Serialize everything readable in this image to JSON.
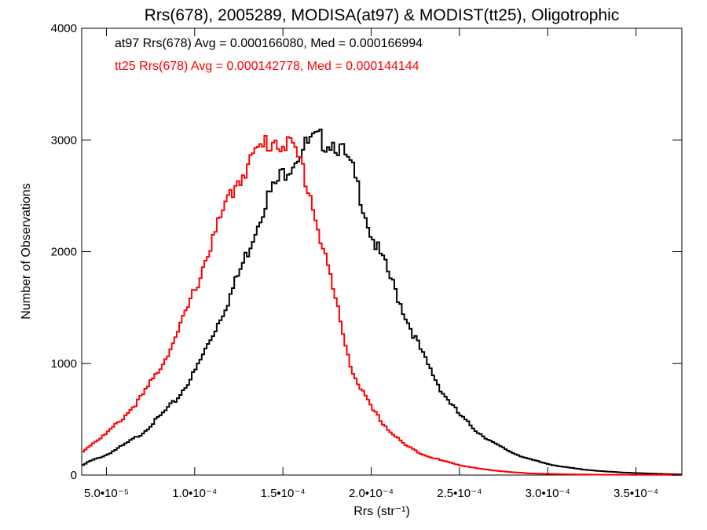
{
  "chart_data": {
    "type": "histogram-step",
    "title": "Rrs(678), 2005289, MODISA(at97) & MODIST(tt25), Oligotrophic",
    "xlabel": "Rrs (str⁻¹)",
    "ylabel": "Number of Observations",
    "xlim": [
      3.6e-05,
      0.000376
    ],
    "ylim": [
      0,
      4000
    ],
    "x_ticks": [
      {
        "value": 5e-05,
        "label": "5.0•10⁻⁵"
      },
      {
        "value": 0.0001,
        "label": "1.0•10⁻⁴"
      },
      {
        "value": 0.00015,
        "label": "1.5•10⁻⁴"
      },
      {
        "value": 0.0002,
        "label": "2.0•10⁻⁴"
      },
      {
        "value": 0.00025,
        "label": "2.5•10⁻⁴"
      },
      {
        "value": 0.0003,
        "label": "3.0•10⁻⁴"
      },
      {
        "value": 0.00035,
        "label": "3.5•10⁻⁴"
      }
    ],
    "y_ticks": [
      {
        "value": 0,
        "label": "0"
      },
      {
        "value": 1000,
        "label": "1000"
      },
      {
        "value": 2000,
        "label": "2000"
      },
      {
        "value": 3000,
        "label": "3000"
      },
      {
        "value": 4000,
        "label": "4000"
      }
    ],
    "annotations": [
      {
        "text": "at97 Rrs(678) Avg = 0.000166080, Med = 0.000166994",
        "color": "#000000"
      },
      {
        "text": "tt25 Rrs(678) Avg = 0.000142778, Med = 0.000144144",
        "color": "#ff0000"
      }
    ],
    "series": [
      {
        "color": "#000000",
        "x": [
          3.6e-05,
          4e-05,
          5e-05,
          6e-05,
          7e-05,
          8e-05,
          9e-05,
          0.0001,
          0.00011,
          0.00012,
          0.00013,
          0.00014,
          0.00015,
          0.000155,
          0.00016,
          0.000165,
          0.00017,
          0.000175,
          0.00018,
          0.000185,
          0.00019,
          0.000195,
          0.0002,
          0.00021,
          0.00022,
          0.00023,
          0.00024,
          0.00025,
          0.00026,
          0.00027,
          0.00028,
          0.00029,
          0.0003,
          0.00031,
          0.00032,
          0.00033,
          0.00034,
          0.00035,
          0.00036,
          0.00037,
          0.000376
        ],
        "y": [
          80,
          120,
          180,
          270,
          370,
          520,
          680,
          920,
          1250,
          1600,
          2000,
          2450,
          2700,
          2800,
          2900,
          2970,
          3000,
          2990,
          2980,
          2850,
          2700,
          2450,
          2150,
          1800,
          1400,
          1050,
          750,
          540,
          390,
          280,
          200,
          140,
          100,
          70,
          50,
          35,
          25,
          18,
          12,
          8,
          5
        ]
      },
      {
        "color": "#ff0000",
        "x": [
          3.6e-05,
          4e-05,
          5e-05,
          6e-05,
          7e-05,
          8e-05,
          9e-05,
          0.0001,
          0.00011,
          0.00012,
          0.000125,
          0.00013,
          0.000135,
          0.00014,
          0.000145,
          0.00015,
          0.000155,
          0.00016,
          0.000165,
          0.00017,
          0.000175,
          0.00018,
          0.000185,
          0.00019,
          0.0002,
          0.00021,
          0.00022,
          0.00023,
          0.00024,
          0.00025,
          0.00026,
          0.00027,
          0.00028,
          0.00029,
          0.0003,
          0.00031,
          0.00032,
          0.00033,
          0.00035,
          0.000376
        ],
        "y": [
          200,
          260,
          370,
          520,
          700,
          950,
          1250,
          1650,
          2100,
          2500,
          2650,
          2780,
          2880,
          2960,
          3000,
          2990,
          2930,
          2800,
          2550,
          2200,
          1900,
          1550,
          1200,
          900,
          600,
          400,
          260,
          180,
          130,
          90,
          60,
          40,
          25,
          15,
          10,
          7,
          5,
          3,
          2,
          1
        ]
      }
    ]
  }
}
